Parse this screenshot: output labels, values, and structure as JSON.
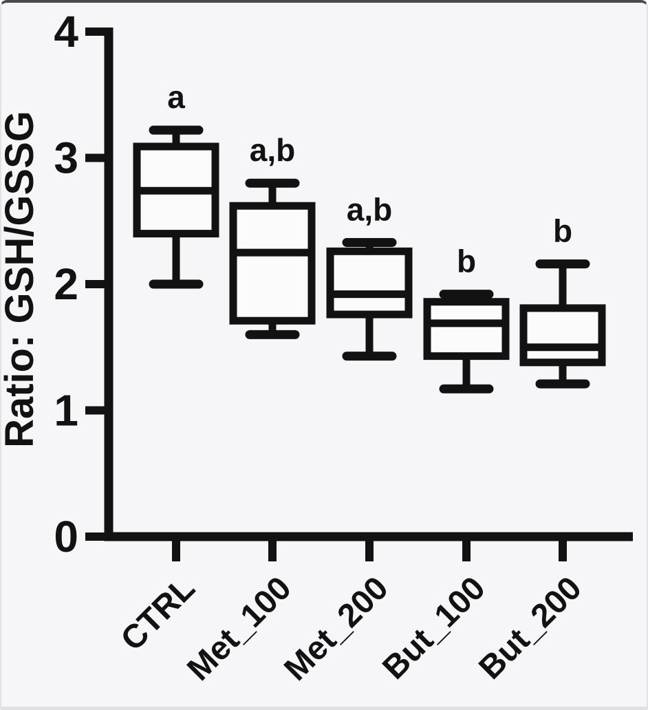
{
  "figure": {
    "kind": "box-and-whisker plot",
    "background": "#f6f6f8"
  },
  "chart_data": {
    "type": "box",
    "title": "",
    "xlabel": "",
    "ylabel": "Ratio: GSH/GSSG",
    "ylim": [
      0,
      4
    ],
    "yticks": [
      0,
      1,
      2,
      3,
      4
    ],
    "grid": false,
    "legend": "none",
    "categories": [
      "CTRL",
      "Met_100",
      "Met_200",
      "But_100",
      "But_200"
    ],
    "annotations": [
      "a",
      "a,b",
      "a,b",
      "b",
      "b"
    ],
    "boxes": [
      {
        "category": "CTRL",
        "annotation": "a",
        "min": 2.0,
        "q1": 2.4,
        "median": 2.74,
        "q3": 3.09,
        "max": 3.22
      },
      {
        "category": "Met_100",
        "annotation": "a,b",
        "min": 1.6,
        "q1": 1.71,
        "median": 2.25,
        "q3": 2.62,
        "max": 2.8
      },
      {
        "category": "Met_200",
        "annotation": "a,b",
        "min": 1.43,
        "q1": 1.76,
        "median": 1.92,
        "q3": 2.26,
        "max": 2.33
      },
      {
        "category": "But_100",
        "annotation": "b",
        "min": 1.17,
        "q1": 1.43,
        "median": 1.69,
        "q3": 1.86,
        "max": 1.92
      },
      {
        "category": "But_200",
        "annotation": "b",
        "min": 1.21,
        "q1": 1.38,
        "median": 1.5,
        "q3": 1.81,
        "max": 2.16
      }
    ],
    "style": {
      "stroke_color": "#121212",
      "box_fill": "#fbfbfc",
      "text_color": "#121212"
    }
  }
}
